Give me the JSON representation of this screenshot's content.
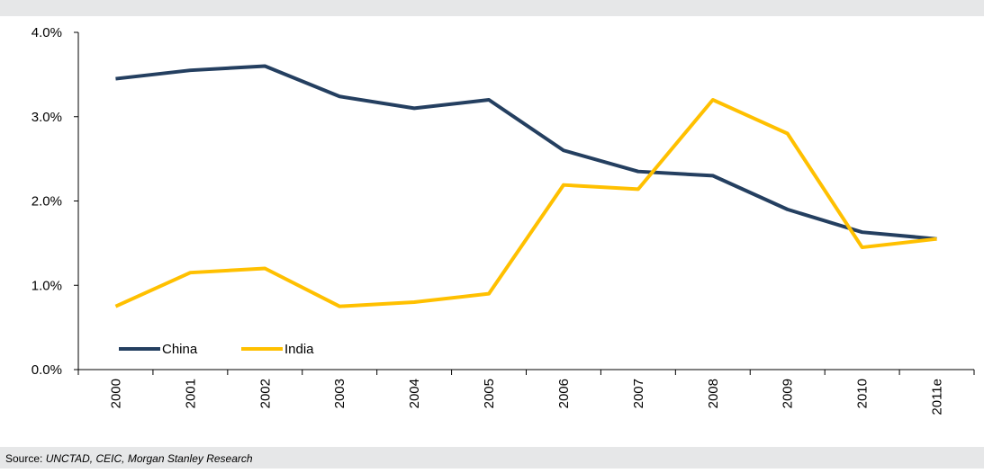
{
  "chart_data": {
    "type": "line",
    "categories": [
      "2000",
      "2001",
      "2002",
      "2003",
      "2004",
      "2005",
      "2006",
      "2007",
      "2008",
      "2009",
      "2010",
      "2011e"
    ],
    "series": [
      {
        "name": "China",
        "color": "#243f60",
        "values": [
          3.45,
          3.55,
          3.6,
          3.24,
          3.1,
          3.2,
          2.6,
          2.35,
          2.3,
          1.9,
          1.63,
          1.55
        ]
      },
      {
        "name": "India",
        "color": "#ffc000",
        "values": [
          0.75,
          1.15,
          1.2,
          0.75,
          0.8,
          0.9,
          2.19,
          2.14,
          3.2,
          2.8,
          1.45,
          1.55
        ]
      }
    ],
    "ylim": [
      0,
      4
    ],
    "yticks": [
      {
        "value": 0,
        "label": "0.0%"
      },
      {
        "value": 1,
        "label": "1.0%"
      },
      {
        "value": 2,
        "label": "2.0%"
      },
      {
        "value": 3,
        "label": "3.0%"
      },
      {
        "value": 4,
        "label": "4.0%"
      }
    ],
    "grid": false,
    "legend": "bottom-left",
    "source_label": "Source:",
    "source": "UNCTAD, CEIC, Morgan Stanley Research"
  }
}
